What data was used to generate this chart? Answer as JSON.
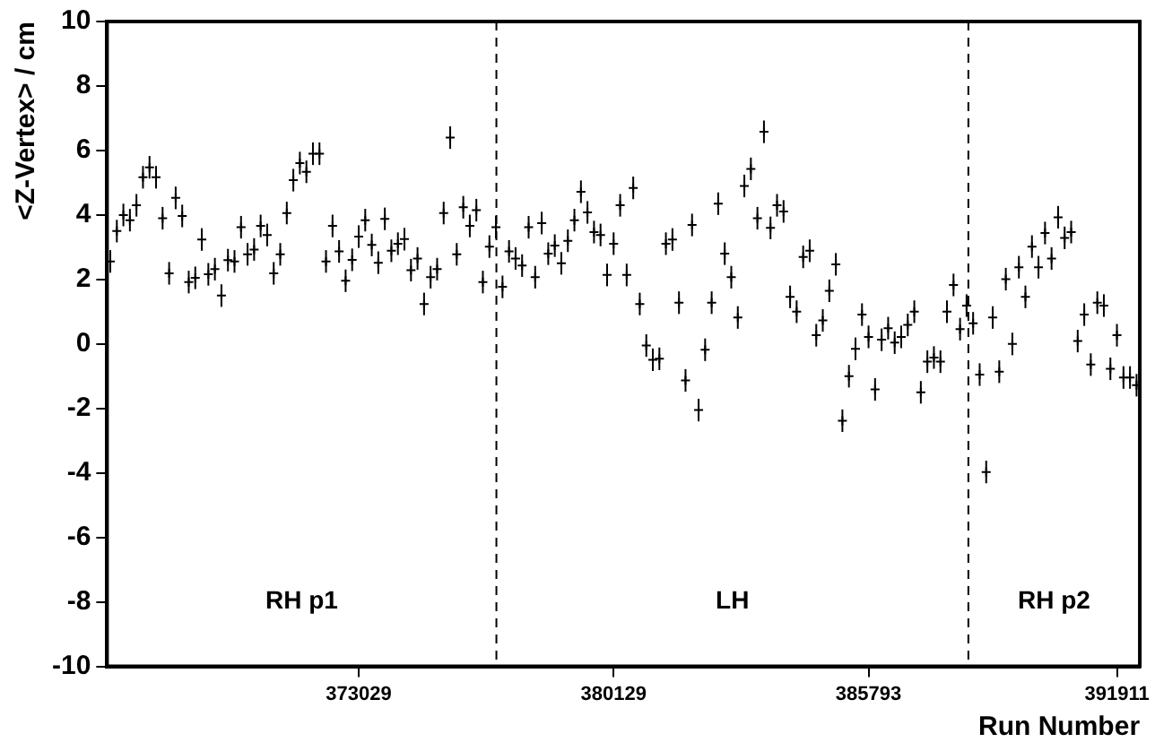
{
  "chart_data": {
    "type": "scatter",
    "xlabel": "Run Number",
    "ylabel": "<Z-Vertex> / cm",
    "categories": [
      null,
      null,
      null,
      null,
      null,
      null,
      null,
      null,
      null,
      null,
      null,
      null,
      null,
      null,
      null,
      null,
      null,
      null,
      null,
      null,
      null,
      null,
      null,
      null,
      null,
      null,
      null,
      null,
      null,
      null,
      null,
      null,
      null,
      null,
      null,
      null,
      null,
      null,
      "373029",
      null,
      null,
      null,
      null,
      null,
      null,
      null,
      null,
      null,
      null,
      null,
      null,
      null,
      null,
      null,
      null,
      null,
      null,
      null,
      null,
      null,
      null,
      null,
      null,
      null,
      null,
      null,
      null,
      null,
      null,
      null,
      null,
      null,
      null,
      null,
      null,
      null,
      null,
      "380129",
      null,
      null,
      null,
      null,
      null,
      null,
      null,
      null,
      null,
      null,
      null,
      null,
      null,
      null,
      null,
      null,
      null,
      null,
      null,
      null,
      null,
      null,
      null,
      null,
      null,
      null,
      null,
      null,
      null,
      null,
      null,
      null,
      null,
      null,
      null,
      null,
      null,
      null,
      "385793",
      null,
      null,
      null,
      null,
      null,
      null,
      null,
      null,
      null,
      null,
      null,
      null,
      null,
      null,
      null,
      null,
      null,
      null,
      null,
      null,
      null,
      null,
      null,
      null,
      null,
      null,
      null,
      null,
      null,
      null,
      null,
      null,
      null,
      null,
      null,
      null,
      null,
      "391911",
      null,
      null,
      null
    ],
    "series": [
      {
        "color": "#000000",
        "values": [
          2.56,
          3.5,
          4.0,
          3.84,
          4.3,
          5.17,
          5.48,
          5.17,
          3.9,
          2.19,
          4.53,
          3.97,
          1.92,
          2.05,
          3.24,
          2.16,
          2.32,
          1.5,
          2.6,
          2.56,
          3.62,
          2.78,
          2.93,
          3.66,
          3.38,
          2.19,
          2.78,
          4.06,
          5.08,
          5.61,
          5.34,
          5.9,
          5.9,
          2.56,
          3.66,
          2.87,
          1.96,
          2.61,
          3.33,
          3.84,
          3.07,
          2.52,
          3.88,
          2.89,
          3.11,
          3.25,
          2.29,
          2.65,
          1.24,
          2.07,
          2.32,
          4.06,
          6.4,
          2.78,
          4.24,
          3.66,
          4.15,
          1.92,
          3.02,
          3.62,
          1.77,
          2.87,
          2.65,
          2.43,
          3.62,
          2.07,
          3.75,
          2.8,
          3.05,
          2.5,
          3.2,
          3.84,
          4.72,
          4.08,
          3.47,
          3.38,
          2.14,
          3.11,
          4.3,
          2.14,
          4.84,
          1.24,
          -0.05,
          -0.49,
          -0.46,
          3.11,
          3.24,
          1.28,
          -1.13,
          3.69,
          -2.05,
          -0.18,
          1.28,
          4.35,
          2.8,
          2.07,
          0.82,
          4.9,
          5.43,
          3.9,
          6.58,
          3.6,
          4.3,
          4.11,
          1.46,
          1.0,
          2.7,
          2.89,
          0.27,
          0.73,
          1.65,
          2.47,
          -2.38,
          -1.0,
          -0.15,
          0.91,
          0.22,
          -1.41,
          0.13,
          0.49,
          0.04,
          0.22,
          0.59,
          1.0,
          -1.5,
          -0.55,
          -0.42,
          -0.55,
          1.0,
          1.83,
          0.46,
          1.19,
          0.64,
          -0.95,
          -3.97,
          0.82,
          -0.86,
          2.01,
          0.0,
          2.38,
          1.46,
          3.02,
          2.38,
          3.44,
          2.65,
          3.93,
          3.29,
          3.47,
          0.09,
          0.91,
          -0.64,
          1.28,
          1.19,
          -0.77,
          0.27,
          -1.04,
          -1.04,
          -1.28
        ],
        "errors": [
          0.35,
          0.35,
          0.35,
          0.35,
          0.35,
          0.35,
          0.35,
          0.35,
          0.35,
          0.35,
          0.35,
          0.35,
          0.35,
          0.35,
          0.35,
          0.35,
          0.35,
          0.35,
          0.35,
          0.35,
          0.35,
          0.35,
          0.35,
          0.35,
          0.35,
          0.35,
          0.35,
          0.35,
          0.35,
          0.35,
          0.35,
          0.35,
          0.35,
          0.35,
          0.35,
          0.35,
          0.35,
          0.35,
          0.35,
          0.35,
          0.35,
          0.35,
          0.35,
          0.35,
          0.35,
          0.35,
          0.35,
          0.35,
          0.35,
          0.35,
          0.35,
          0.35,
          0.35,
          0.35,
          0.35,
          0.35,
          0.35,
          0.35,
          0.35,
          0.35,
          0.35,
          0.35,
          0.35,
          0.35,
          0.35,
          0.35,
          0.35,
          0.35,
          0.35,
          0.35,
          0.35,
          0.35,
          0.35,
          0.35,
          0.35,
          0.35,
          0.35,
          0.35,
          0.35,
          0.35,
          0.35,
          0.35,
          0.35,
          0.35,
          0.35,
          0.35,
          0.35,
          0.35,
          0.35,
          0.35,
          0.35,
          0.35,
          0.35,
          0.35,
          0.35,
          0.35,
          0.35,
          0.35,
          0.35,
          0.35,
          0.35,
          0.35,
          0.35,
          0.35,
          0.35,
          0.35,
          0.35,
          0.35,
          0.35,
          0.35,
          0.35,
          0.35,
          0.35,
          0.35,
          0.35,
          0.35,
          0.35,
          0.35,
          0.35,
          0.35,
          0.35,
          0.35,
          0.35,
          0.35,
          0.35,
          0.35,
          0.35,
          0.35,
          0.35,
          0.35,
          0.35,
          0.35,
          0.35,
          0.35,
          0.35,
          0.35,
          0.35,
          0.35,
          0.35,
          0.35,
          0.35,
          0.35,
          0.35,
          0.35,
          0.35,
          0.35,
          0.35,
          0.35,
          0.35,
          0.35,
          0.35,
          0.35,
          0.35,
          0.35,
          0.35,
          0.35,
          0.35,
          0.35
        ]
      }
    ],
    "ylim": [
      -10,
      10
    ],
    "yticks": [
      -10,
      -8,
      -6,
      -4,
      -2,
      0,
      2,
      4,
      6,
      8,
      10
    ],
    "annotations": [
      "RH p1",
      "LH",
      "RH p2"
    ],
    "marker": "cross",
    "grid": false,
    "legend": false
  }
}
